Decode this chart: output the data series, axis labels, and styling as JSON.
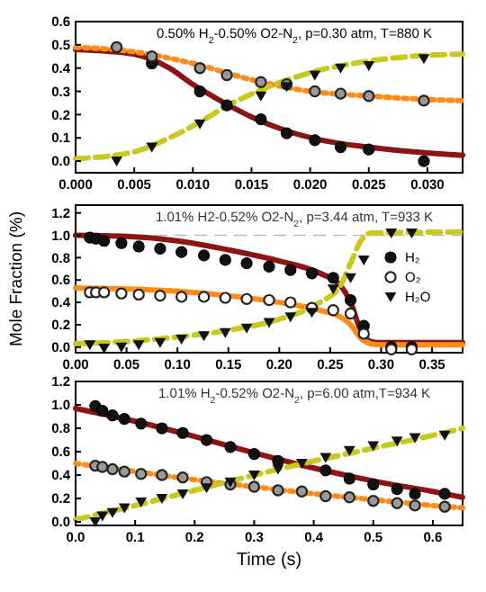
{
  "chart_data": [
    {
      "type": "line",
      "title": "0.50% H$_{2}$-0.50% O2-N$_{2}$, p=0.30 atm, T=880 K",
      "xlim": [
        0,
        0.033
      ],
      "ylim": [
        -0.05,
        0.6
      ],
      "xticks": [
        {
          "value": 0,
          "label": "0.000"
        },
        {
          "value": 0.005,
          "label": "0.005"
        },
        {
          "value": 0.01,
          "label": "0.010"
        },
        {
          "value": 0.015,
          "label": "0.015"
        },
        {
          "value": 0.02,
          "label": "0.020"
        },
        {
          "value": 0.025,
          "label": "0.025"
        },
        {
          "value": 0.03,
          "label": "0.030"
        }
      ],
      "yticks": [
        {
          "value": 0,
          "label": "0.0"
        },
        {
          "value": 0.1,
          "label": "0.1"
        },
        {
          "value": 0.2,
          "label": "0.2"
        },
        {
          "value": 0.3,
          "label": "0.3"
        },
        {
          "value": 0.4,
          "label": "0.4"
        },
        {
          "value": 0.5,
          "label": "0.5"
        },
        {
          "value": 0.6,
          "label": "0.6"
        }
      ],
      "series": [
        {
          "color": "#8b1414",
          "line_style": "solid",
          "x": [
            0,
            0.005,
            0.008,
            0.01,
            0.012,
            0.015,
            0.018,
            0.021,
            0.025,
            0.03,
            0.033
          ],
          "values": [
            0.48,
            0.46,
            0.4,
            0.33,
            0.27,
            0.19,
            0.13,
            0.09,
            0.06,
            0.035,
            0.025
          ]
        },
        {
          "color": "#ff8c1a",
          "line_style": "dotted",
          "x": [
            0,
            0.005,
            0.01,
            0.015,
            0.02,
            0.025,
            0.03,
            0.033
          ],
          "values": [
            0.49,
            0.47,
            0.42,
            0.35,
            0.3,
            0.28,
            0.265,
            0.26
          ]
        },
        {
          "color": "#c8c81e",
          "line_style": "dashed",
          "x": [
            0,
            0.005,
            0.008,
            0.011,
            0.013,
            0.016,
            0.02,
            0.025,
            0.03,
            0.033
          ],
          "values": [
            0.01,
            0.04,
            0.1,
            0.18,
            0.24,
            0.31,
            0.38,
            0.43,
            0.455,
            0.46
          ]
        },
        {
          "type": "scatter",
          "color": "#111111",
          "marker": "circle",
          "x": [
            0.0065,
            0.0106,
            0.0129,
            0.0158,
            0.018,
            0.0204,
            0.0226,
            0.025,
            0.0297
          ],
          "values": [
            0.42,
            0.3,
            0.24,
            0.18,
            0.12,
            0.09,
            0.06,
            0.05,
            0.0
          ]
        },
        {
          "type": "scatter",
          "color": "#999999",
          "marker": "open-circle",
          "x": [
            0.0035,
            0.0065,
            0.0106,
            0.0129,
            0.0158,
            0.018,
            0.0204,
            0.0226,
            0.025,
            0.0297
          ],
          "values": [
            0.49,
            0.45,
            0.4,
            0.37,
            0.34,
            0.33,
            0.3,
            0.29,
            0.28,
            0.26
          ]
        },
        {
          "type": "scatter",
          "color": "#111111",
          "marker": "triangle",
          "x": [
            0.0035,
            0.0065,
            0.0106,
            0.0129,
            0.0158,
            0.018,
            0.0204,
            0.0226,
            0.025,
            0.0297
          ],
          "values": [
            0.0,
            0.06,
            0.16,
            0.24,
            0.28,
            0.32,
            0.37,
            0.4,
            0.41,
            0.44
          ]
        }
      ]
    },
    {
      "type": "line",
      "title": "1.01% H2-0.52% O2-N$_{2}$, p=3.44 atm, T=933 K",
      "ylabel": "Mole Fraction (%)",
      "legend": "right",
      "xlim": [
        0,
        0.38
      ],
      "ylim": [
        -0.05,
        1.27
      ],
      "xticks": [
        {
          "value": 0,
          "label": "0.00"
        },
        0.05,
        {
          "value": 0.1,
          "label": "0.10"
        },
        0.15,
        {
          "value": 0.2,
          "label": "0.20"
        },
        0.25,
        {
          "value": 0.3,
          "label": "0.30"
        },
        0.35
      ],
      "yticks": [
        {
          "value": 0,
          "label": "0.0"
        },
        0.2,
        0.4,
        0.6,
        0.8,
        {
          "value": 1,
          "label": "1.0"
        },
        1.2
      ],
      "ref_lines": [
        {
          "axis": "y",
          "value": 1.0,
          "color": "#bbbbbb",
          "line_style": "dashed"
        }
      ],
      "series": [
        {
          "color": "#8b1414",
          "line_style": "solid",
          "x": [
            0,
            0.05,
            0.1,
            0.15,
            0.2,
            0.24,
            0.26,
            0.27,
            0.28,
            0.29,
            0.3,
            0.38
          ],
          "values": [
            1.0,
            0.99,
            0.95,
            0.87,
            0.77,
            0.66,
            0.55,
            0.4,
            0.15,
            0.05,
            0.04,
            0.04
          ]
        },
        {
          "color": "#ff8c1a",
          "line_style": "solid",
          "x": [
            0,
            0.05,
            0.1,
            0.15,
            0.2,
            0.24,
            0.26,
            0.27,
            0.28,
            0.29,
            0.3,
            0.38
          ],
          "values": [
            0.53,
            0.52,
            0.5,
            0.46,
            0.4,
            0.33,
            0.27,
            0.2,
            0.08,
            0.03,
            0.02,
            0.02
          ]
        },
        {
          "color": "#c8c81e",
          "line_style": "dashed",
          "x": [
            0,
            0.05,
            0.1,
            0.15,
            0.2,
            0.24,
            0.26,
            0.27,
            0.28,
            0.29,
            0.38
          ],
          "values": [
            0.03,
            0.05,
            0.09,
            0.15,
            0.25,
            0.4,
            0.55,
            0.75,
            0.95,
            1.02,
            1.03
          ]
        },
        {
          "type": "scatter",
          "name": "H₂",
          "color": "#111111",
          "marker": "circle",
          "x": [
            0.014,
            0.02,
            0.028,
            0.045,
            0.062,
            0.083,
            0.104,
            0.126,
            0.147,
            0.168,
            0.19,
            0.211,
            0.232,
            0.253,
            0.27,
            0.283,
            0.31,
            0.33
          ],
          "values": [
            0.98,
            0.97,
            0.95,
            0.93,
            0.9,
            0.88,
            0.85,
            0.82,
            0.78,
            0.75,
            0.72,
            0.69,
            0.66,
            0.62,
            0.42,
            0.19,
            0.0,
            0.0
          ]
        },
        {
          "type": "scatter",
          "name": "O₂",
          "color": "#ffffff",
          "marker": "open-circle",
          "x": [
            0.014,
            0.02,
            0.028,
            0.045,
            0.062,
            0.083,
            0.104,
            0.126,
            0.147,
            0.168,
            0.19,
            0.211,
            0.232,
            0.253,
            0.27,
            0.283,
            0.31,
            0.33
          ],
          "values": [
            0.49,
            0.49,
            0.49,
            0.48,
            0.47,
            0.46,
            0.45,
            0.45,
            0.44,
            0.43,
            0.42,
            0.4,
            0.35,
            0.33,
            0.3,
            0.12,
            -0.02,
            -0.02
          ]
        },
        {
          "type": "scatter",
          "name": "H₂O",
          "color": "#111111",
          "marker": "triangle",
          "x": [
            0.014,
            0.028,
            0.045,
            0.062,
            0.083,
            0.104,
            0.126,
            0.147,
            0.168,
            0.19,
            0.211,
            0.232,
            0.253,
            0.27,
            0.283,
            0.31,
            0.33
          ],
          "values": [
            0.02,
            -0.01,
            0.0,
            0.02,
            0.04,
            0.07,
            0.1,
            0.13,
            0.17,
            0.22,
            0.27,
            0.31,
            0.52,
            0.62,
            0.78,
            1.02,
            1.02
          ]
        }
      ]
    },
    {
      "type": "line",
      "title": "1.01% H$_{2}$-0.52% O2-N$_{2}$, p=6.00 atm,T=934 K",
      "xlabel": "Time (s)",
      "xlim": [
        0,
        0.65
      ],
      "ylim": [
        -0.03,
        1.2
      ],
      "xticks": [
        {
          "value": 0,
          "label": "0.0"
        },
        0.1,
        0.2,
        0.3,
        0.4,
        0.5,
        0.6
      ],
      "yticks": [
        {
          "value": 0,
          "label": "0.0"
        },
        0.2,
        0.4,
        0.6,
        0.8,
        {
          "value": 1,
          "label": "1.0"
        },
        1.2
      ],
      "series": [
        {
          "color": "#8b1414",
          "line_style": "solid",
          "x": [
            0,
            0.1,
            0.2,
            0.3,
            0.4,
            0.5,
            0.6,
            0.65
          ],
          "values": [
            0.97,
            0.86,
            0.73,
            0.59,
            0.46,
            0.35,
            0.26,
            0.21
          ]
        },
        {
          "color": "#ff8c1a",
          "line_style": "dotted",
          "x": [
            0,
            0.1,
            0.2,
            0.3,
            0.4,
            0.5,
            0.6,
            0.65
          ],
          "values": [
            0.5,
            0.43,
            0.36,
            0.3,
            0.24,
            0.19,
            0.14,
            0.12
          ]
        },
        {
          "color": "#c8c81e",
          "line_style": "dashed",
          "x": [
            0,
            0.1,
            0.2,
            0.3,
            0.4,
            0.5,
            0.6,
            0.65
          ],
          "values": [
            0.02,
            0.14,
            0.27,
            0.4,
            0.52,
            0.63,
            0.74,
            0.8
          ]
        },
        {
          "type": "scatter",
          "color": "#111111",
          "marker": "circle",
          "x": [
            0.033,
            0.045,
            0.062,
            0.082,
            0.11,
            0.145,
            0.18,
            0.22,
            0.26,
            0.3,
            0.34,
            0.42,
            0.46,
            0.5,
            0.54,
            0.57,
            0.62
          ],
          "values": [
            0.99,
            0.95,
            0.91,
            0.88,
            0.84,
            0.8,
            0.76,
            0.7,
            0.64,
            0.58,
            0.52,
            0.44,
            0.37,
            0.32,
            0.28,
            0.24,
            0.24
          ]
        },
        {
          "type": "scatter",
          "color": "#999999",
          "marker": "open-circle",
          "x": [
            0.033,
            0.045,
            0.062,
            0.082,
            0.11,
            0.145,
            0.18,
            0.22,
            0.26,
            0.3,
            0.34,
            0.38,
            0.42,
            0.46,
            0.5,
            0.54,
            0.57,
            0.62
          ],
          "values": [
            0.48,
            0.47,
            0.45,
            0.43,
            0.41,
            0.4,
            0.38,
            0.34,
            0.32,
            0.3,
            0.27,
            0.26,
            0.22,
            0.21,
            0.18,
            0.16,
            0.14,
            0.13
          ]
        },
        {
          "type": "scatter",
          "color": "#111111",
          "marker": "triangle",
          "x": [
            0.033,
            0.045,
            0.062,
            0.082,
            0.11,
            0.145,
            0.18,
            0.22,
            0.26,
            0.3,
            0.34,
            0.38,
            0.42,
            0.46,
            0.5,
            0.54,
            0.57,
            0.62
          ],
          "values": [
            0.0,
            0.05,
            0.08,
            0.12,
            0.17,
            0.2,
            0.24,
            0.29,
            0.34,
            0.4,
            0.45,
            0.5,
            0.55,
            0.61,
            0.65,
            0.69,
            0.72,
            0.74
          ]
        }
      ]
    }
  ]
}
